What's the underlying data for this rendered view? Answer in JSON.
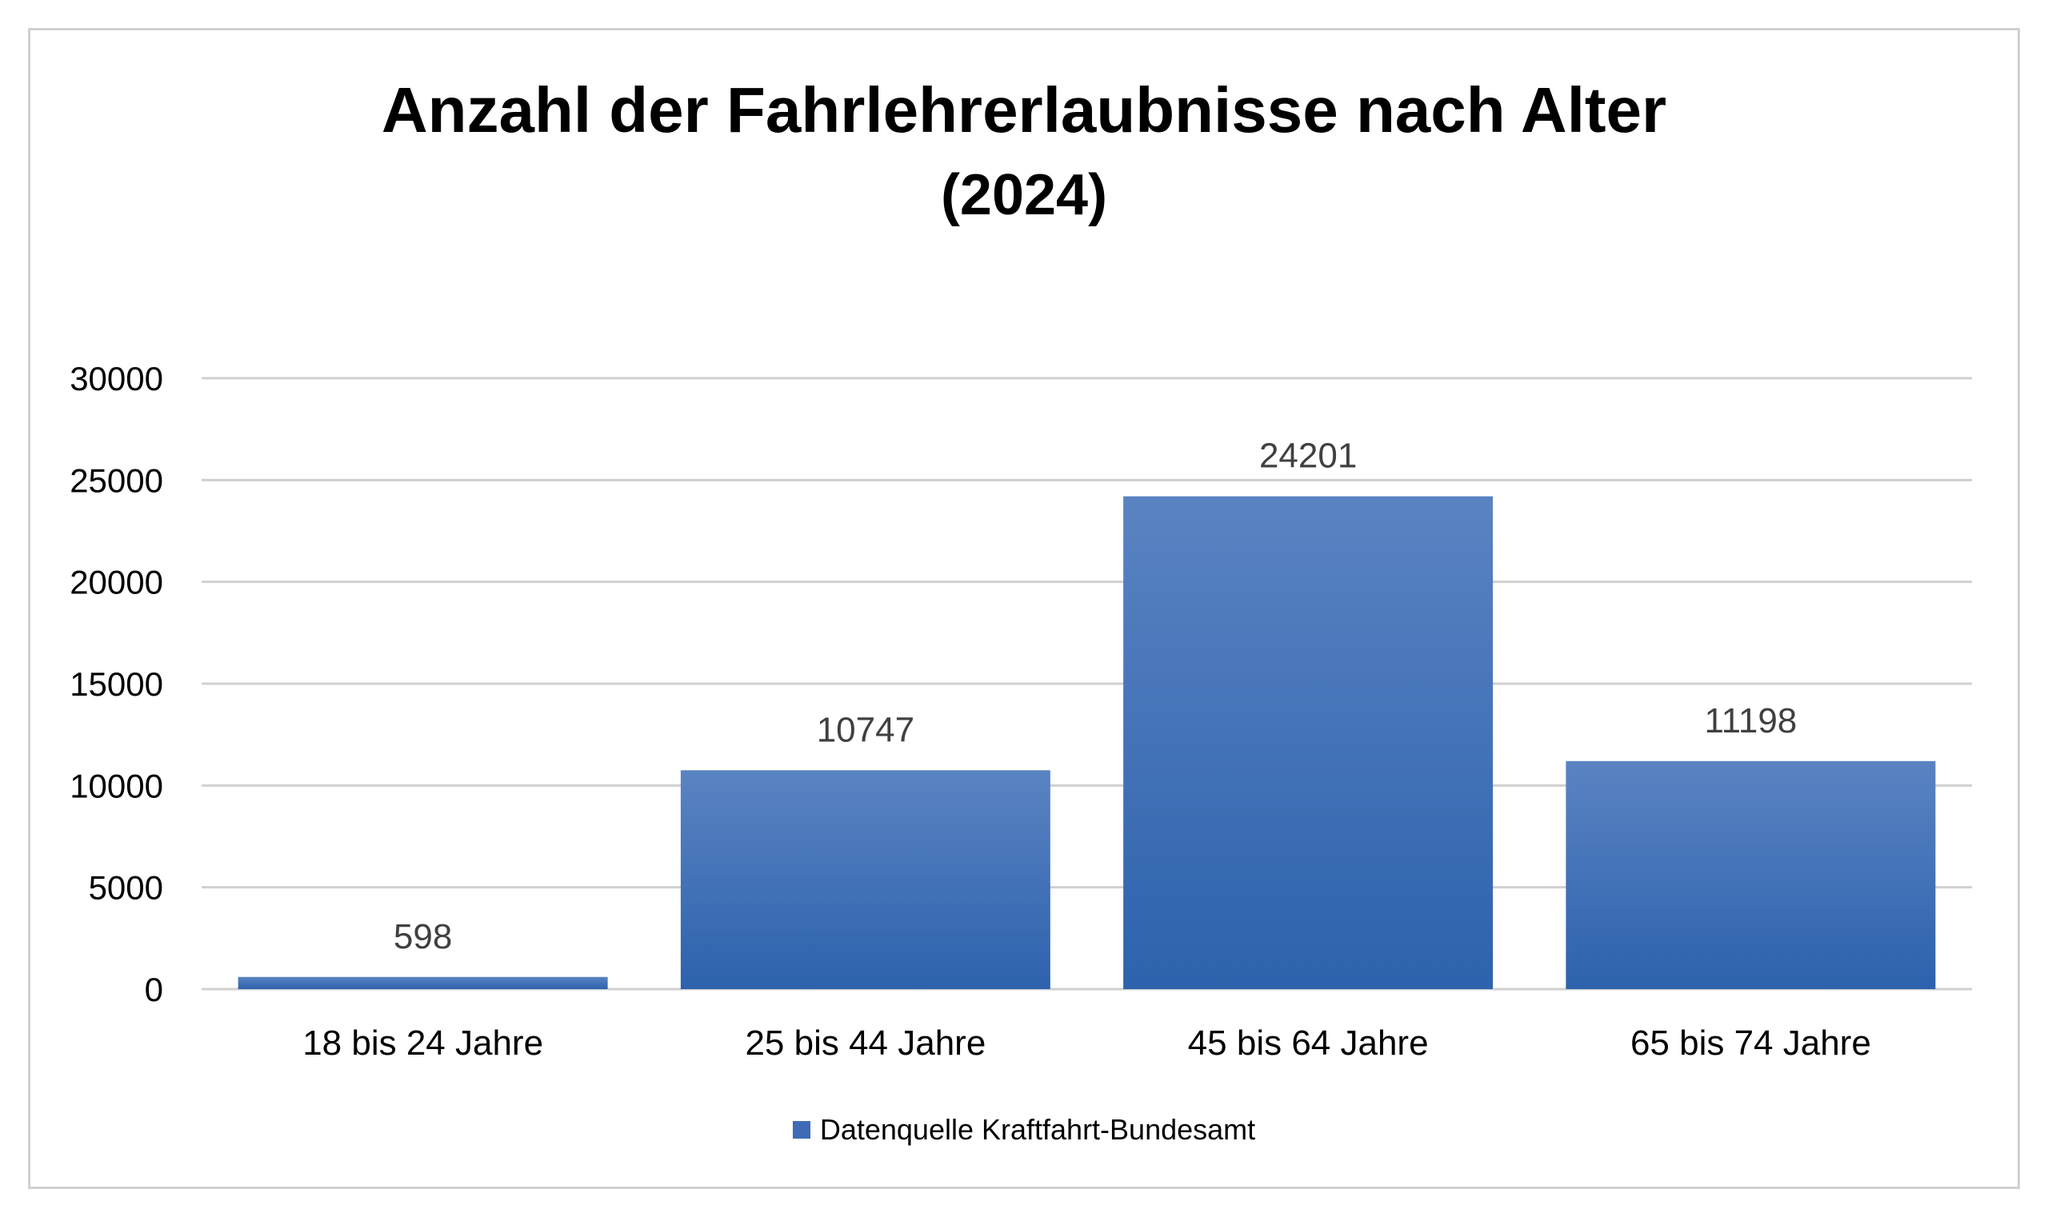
{
  "colors": {
    "bar_top": "#5a83c2",
    "bar_bottom": "#2d62ad",
    "legend_swatch": "#3d6bb5",
    "gridline": "#d0d0d0",
    "frame": "#d0d0d0"
  },
  "chart_data": {
    "type": "bar",
    "title": "Anzahl der Fahrlehrerlaubnisse nach Alter",
    "subtitle": "(2024)",
    "categories": [
      "18 bis 24 Jahre",
      "25 bis 44 Jahre",
      "45 bis 64 Jahre",
      "65 bis 74 Jahre"
    ],
    "series": [
      {
        "name": "Datenquelle Kraftfahrt-Bundesamt",
        "values": [
          598,
          10747,
          24201,
          11198
        ]
      }
    ],
    "data_labels": [
      "598",
      "10747",
      "24201",
      "11198"
    ],
    "ylim": [
      0,
      30000
    ],
    "yticks": [
      "0",
      "5000",
      "10000",
      "15000",
      "20000",
      "25000",
      "30000"
    ],
    "grid": true,
    "legend_position": "bottom"
  }
}
